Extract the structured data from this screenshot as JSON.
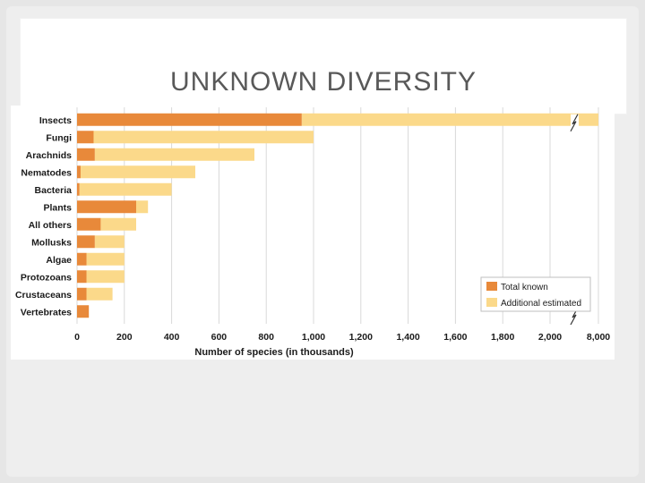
{
  "slide": {
    "title": "UNKNOWN DIVERSITY"
  },
  "colors": {
    "known": "#e8893a",
    "estimated": "#fbd98a",
    "grid": "#d9d9d9"
  },
  "chart_data": {
    "type": "bar",
    "orientation": "horizontal",
    "stacked": true,
    "categories": [
      "Insects",
      "Fungi",
      "Arachnids",
      "Nematodes",
      "Bacteria",
      "Plants",
      "All others",
      "Mollusks",
      "Algae",
      "Protozoans",
      "Crustaceans",
      "Vertebrates"
    ],
    "series": [
      {
        "name": "Total known",
        "values": [
          950,
          70,
          75,
          15,
          10,
          250,
          100,
          75,
          40,
          40,
          40,
          50
        ]
      },
      {
        "name": "Additional estimated",
        "values": [
          7050,
          930,
          675,
          485,
          390,
          50,
          150,
          125,
          160,
          160,
          110,
          0
        ]
      }
    ],
    "xlabel": "Number of species (in thousands)",
    "ylabel": "",
    "x_ticks": [
      "0",
      "200",
      "400",
      "600",
      "800",
      "1,000",
      "1,200",
      "1,400",
      "1,600",
      "1,800",
      "2,000",
      "8,000"
    ],
    "xlim": [
      0,
      8000
    ],
    "axis_break": [
      2100,
      7900
    ],
    "grid": true,
    "legend_position": "bottom-right"
  }
}
